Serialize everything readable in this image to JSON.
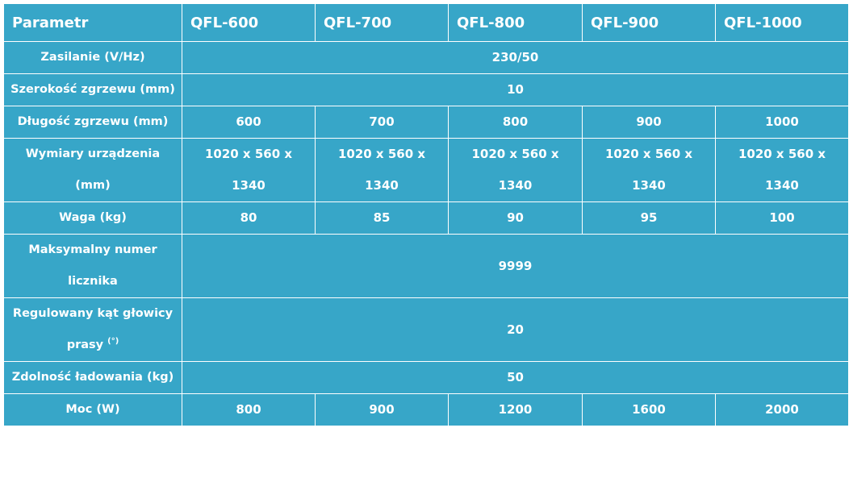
{
  "header": {
    "param": "Parametr",
    "models": [
      "QFL-600",
      "QFL-700",
      "QFL-800",
      "QFL-900",
      "QFL-1000"
    ]
  },
  "rows": {
    "zasilanie": {
      "label": "Zasilanie (V/Hz)",
      "value": "230/50"
    },
    "szerokosc": {
      "label": "Szerokość zgrzewu (mm)",
      "value": "10"
    },
    "dlugosc": {
      "label": "Długość zgrzewu (mm)",
      "values": [
        "600",
        "700",
        "800",
        "900",
        "1000"
      ]
    },
    "wymiary": {
      "label": "Wymiary urządzenia (mm)",
      "values": [
        "1020 x 560 x 1340",
        "1020 x 560 x 1340",
        "1020 x 560 x 1340",
        "1020 x 560 x 1340",
        "1020 x 560 x 1340"
      ]
    },
    "waga": {
      "label": "Waga (kg)",
      "values": [
        "80",
        "85",
        "90",
        "95",
        "100"
      ]
    },
    "licznik": {
      "label": "Maksymalny numer licznika",
      "value": "9999"
    },
    "kat": {
      "label": "Regulowany kąt głowicy prasy",
      "unit": "(°)",
      "value": "20"
    },
    "ladowanie": {
      "label": "Zdolność ładowania (kg)",
      "value": "50"
    },
    "moc": {
      "label": "Moc (W)",
      "values": [
        "800",
        "900",
        "1200",
        "1600",
        "2000"
      ]
    }
  }
}
